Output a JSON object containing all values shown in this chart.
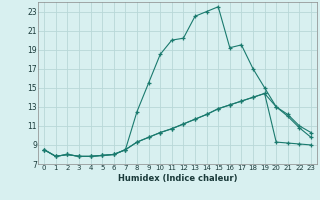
{
  "title": "",
  "xlabel": "Humidex (Indice chaleur)",
  "bg_color": "#d8f0f0",
  "line_color": "#1a7a6e",
  "grid_color": "#b8d8d8",
  "xlim": [
    -0.5,
    23.5
  ],
  "ylim": [
    7,
    24
  ],
  "xticks": [
    0,
    1,
    2,
    3,
    4,
    5,
    6,
    7,
    8,
    9,
    10,
    11,
    12,
    13,
    14,
    15,
    16,
    17,
    18,
    19,
    20,
    21,
    22,
    23
  ],
  "yticks": [
    7,
    9,
    11,
    13,
    15,
    17,
    19,
    21,
    23
  ],
  "line1_x": [
    0,
    1,
    2,
    3,
    4,
    5,
    6,
    7,
    8,
    9,
    10,
    11,
    12,
    13,
    14,
    15,
    16,
    17,
    18,
    19,
    20,
    21,
    22,
    23
  ],
  "line1_y": [
    8.5,
    7.8,
    8.0,
    7.8,
    7.8,
    7.9,
    8.0,
    8.5,
    12.5,
    15.5,
    18.5,
    20.0,
    20.2,
    22.5,
    23.0,
    23.5,
    19.2,
    19.5,
    17.0,
    15.0,
    13.0,
    12.2,
    11.0,
    10.3
  ],
  "line2_x": [
    0,
    1,
    2,
    3,
    4,
    5,
    6,
    7,
    8,
    9,
    10,
    11,
    12,
    13,
    14,
    15,
    16,
    17,
    18,
    19,
    20,
    21,
    22,
    23
  ],
  "line2_y": [
    8.5,
    7.8,
    8.0,
    7.8,
    7.8,
    7.9,
    8.0,
    8.5,
    9.3,
    9.8,
    10.3,
    10.7,
    11.2,
    11.7,
    12.2,
    12.8,
    13.2,
    13.6,
    14.0,
    14.4,
    13.0,
    12.0,
    10.8,
    9.8
  ],
  "line3_x": [
    0,
    1,
    2,
    3,
    4,
    5,
    6,
    7,
    8,
    9,
    10,
    11,
    12,
    13,
    14,
    15,
    16,
    17,
    18,
    19,
    20,
    21,
    22,
    23
  ],
  "line3_y": [
    8.5,
    7.8,
    8.0,
    7.8,
    7.8,
    7.9,
    8.0,
    8.5,
    9.3,
    9.8,
    10.3,
    10.7,
    11.2,
    11.7,
    12.2,
    12.8,
    13.2,
    13.6,
    14.0,
    14.4,
    9.3,
    9.2,
    9.1,
    9.0
  ]
}
